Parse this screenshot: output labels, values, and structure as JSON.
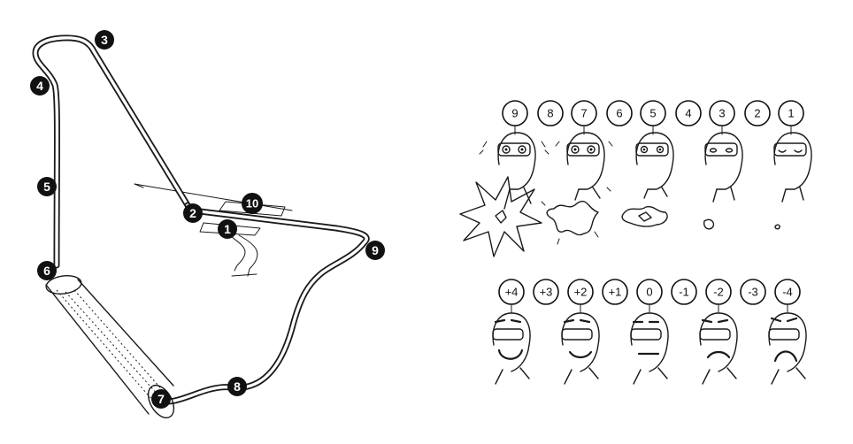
{
  "track": {
    "markers": [
      "1",
      "2",
      "3",
      "4",
      "5",
      "6",
      "7",
      "8",
      "9",
      "10"
    ]
  },
  "arousal_scale": {
    "labels": [
      "9",
      "8",
      "7",
      "6",
      "5",
      "4",
      "3",
      "2",
      "1"
    ]
  },
  "valence_scale": {
    "labels": [
      "+4",
      "+3",
      "+2",
      "+1",
      "0",
      "-1",
      "-2",
      "-3",
      "-4"
    ]
  }
}
